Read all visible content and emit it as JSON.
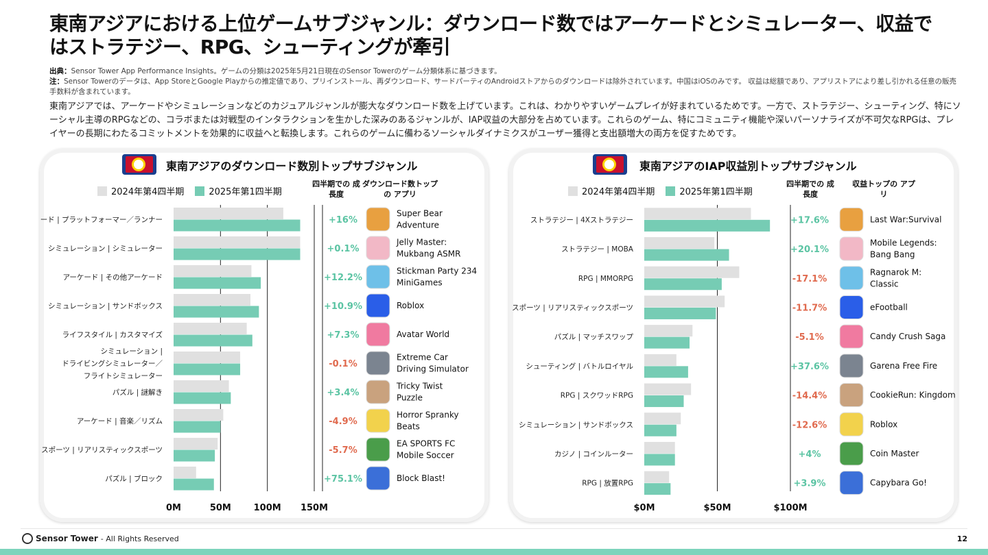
{
  "title": "東南アジアにおける上位ゲームサブジャンル：ダウンロード数ではアーケードとシミュレーター、収益ではストラテジー、RPG、シューティングが牽引",
  "notes": {
    "source_label": "出典：",
    "source": "Sensor Tower App Performance Insights。ゲームの分類は2025年5月21日現在のSensor Towerのゲーム分類体系に基づきます。",
    "note_label": "注：",
    "note": "Sensor Towerのデータは、App StoreとGoogle Playからの推定値であり、プリインストール、再ダウンロード、サードパーティのAndroidストアからのダウンロードは除外されています。中国はiOSのみです。 収益は総額であり、アプリストアにより差し引かれる任意の販売手数料が含まれています。"
  },
  "body": "東南アジアでは、アーケードやシミュレーションなどのカジュアルジャンルが膨大なダウンロード数を上げています。これは、わかりやすいゲームプレイが好まれているためです。一方で、ストラテジー、シューティング、特にソーシャル主導のRPGなどの、コラボまたは対戦型のインタラクションを生かした深みのあるジャンルが、IAP収益の大部分を占めています。これらのゲーム、特にコミュニティ機能や深いパーソナライズが不可欠なRPGは、プレイヤーの長期にわたるコミットメントを効果的に収益へと転換します。これらのゲームに備わるソーシャルダイナミクスがユーザー獲得と支出額増大の両方を促すためです。",
  "colors": {
    "prev": "#e0e0e0",
    "curr": "#76ccb4",
    "positive": "#5bc4a3",
    "negative": "#e06a4e"
  },
  "chart_data": [
    {
      "type": "bar",
      "title": "東南アジアのダウンロード数別トップサブジャンル",
      "legend": [
        "2024年第4四半期",
        "2025年第1四半期"
      ],
      "growth_header": "四半期での 成長度",
      "app_header": "ダウンロード数トップの アプリ",
      "ticks": [
        "0M",
        "50M",
        "100M",
        "150M"
      ],
      "xlim": [
        0,
        150
      ],
      "categories": [
        "アーケード | プラットフォーマー／ランナー",
        "シミュレーション | シミュレーター",
        "アーケード | その他アーケード",
        "シミュレーション | サンドボックス",
        "ライフスタイル | カスタマイズ",
        "シミュレーション | ドライビングシミュレーター／フライトシミュレーター",
        "パズル | 謎解き",
        "アーケード | 音楽／リズム",
        "スポーツ | リアリスティックスポーツ",
        "パズル | ブロック"
      ],
      "series": [
        {
          "name": "2024年第4四半期",
          "values": [
            117,
            135,
            83,
            82,
            78,
            71,
            59,
            53,
            47,
            24
          ]
        },
        {
          "name": "2025年第1四半期",
          "values": [
            135,
            135,
            93,
            91,
            84,
            71,
            61,
            50,
            44,
            43
          ]
        }
      ],
      "growth": [
        "+16%",
        "+0.1%",
        "+12.2%",
        "+10.9%",
        "+7.3%",
        "-0.1%",
        "+3.4%",
        "-4.9%",
        "-5.7%",
        "+75.1%"
      ],
      "apps": [
        "Super Bear Adventure",
        "Jelly Master: Mukbang ASMR",
        "Stickman Party 234 MiniGames",
        "Roblox",
        "Avatar World",
        "Extreme Car Driving Simulator",
        "Tricky Twist Puzzle",
        "Horror Spranky Beats",
        "EA SPORTS FC Mobile Soccer",
        "Block Blast!"
      ]
    },
    {
      "type": "bar",
      "title": "東南アジアのIAP収益別トップサブジャンル",
      "legend": [
        "2024年第4四半期",
        "2025年第1四半期"
      ],
      "growth_header": "四半期での 成長度",
      "app_header": "収益トップの アプリ",
      "ticks": [
        "$0M",
        "$50M",
        "$100M"
      ],
      "xlim": [
        0,
        100
      ],
      "categories": [
        "ストラテジー | 4Xストラテジー",
        "ストラテジー | MOBA",
        "RPG | MMORPG",
        "スポーツ | リアリスティックスポーツ",
        "パズル | マッチスワップ",
        "シューティング | バトルロイヤル",
        "RPG | スクワッドRPG",
        "シミュレーション | サンドボックス",
        "カジノ | コインルーター",
        "RPG | 放置RPG"
      ],
      "series": [
        {
          "name": "2024年第4四半期",
          "values": [
            73,
            48,
            65,
            55,
            33,
            22,
            32,
            25,
            21,
            17
          ]
        },
        {
          "name": "2025年第1四半期",
          "values": [
            86,
            58,
            53,
            49,
            31,
            30,
            27,
            22,
            21,
            18
          ]
        }
      ],
      "growth": [
        "+17.6%",
        "+20.1%",
        "-17.1%",
        "-11.7%",
        "-5.1%",
        "+37.6%",
        "-14.4%",
        "-12.6%",
        "+4%",
        "+3.9%"
      ],
      "apps": [
        "Last War:Survival",
        "Mobile Legends: Bang Bang",
        "Ragnarok M: Classic",
        "eFootball",
        "Candy Crush Saga",
        "Garena Free Fire",
        "CookieRun: Kingdom",
        "Roblox",
        "Coin Master",
        "Capybara Go!"
      ]
    }
  ],
  "footer": {
    "brand": "Sensor Tower",
    "rights": "- All Rights Reserved",
    "page": "12"
  }
}
